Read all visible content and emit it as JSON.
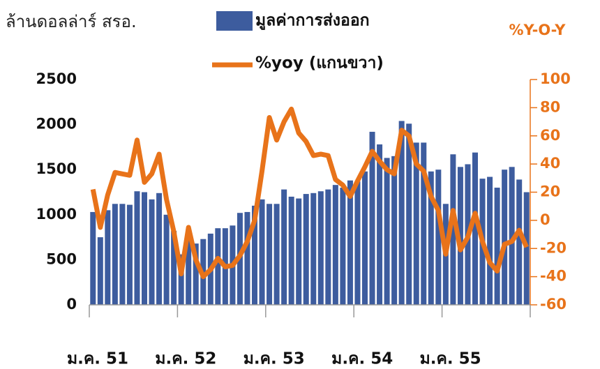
{
  "chart_data": {
    "type": "bar_line",
    "y_label": "ล้านดอลล่าร์ สรอ.",
    "y2_label": "%Y-O-Y",
    "categories": [
      "ม.ค. 51",
      null,
      null,
      null,
      null,
      null,
      null,
      null,
      null,
      null,
      null,
      null,
      "ม.ค. 52",
      null,
      null,
      null,
      null,
      null,
      null,
      null,
      null,
      null,
      null,
      null,
      "ม.ค. 53",
      null,
      null,
      null,
      null,
      null,
      null,
      null,
      null,
      null,
      null,
      null,
      "ม.ค. 54",
      null,
      null,
      null,
      null,
      null,
      null,
      null,
      null,
      null,
      null,
      null,
      "ม.ค. 55",
      null,
      null,
      null,
      null,
      null,
      null,
      null,
      null,
      null,
      null,
      null
    ],
    "series": [
      {
        "name": "มูลค่าการส่งออก",
        "type": "bar",
        "color": "#3d5c9e",
        "values": [
          1030,
          750,
          1050,
          1120,
          1120,
          1110,
          1260,
          1250,
          1170,
          1240,
          1000,
          820,
          560,
          760,
          680,
          730,
          790,
          850,
          850,
          880,
          1020,
          1030,
          1100,
          1170,
          1120,
          1120,
          1280,
          1200,
          1180,
          1230,
          1240,
          1260,
          1280,
          1330,
          1300,
          1380,
          1370,
          1480,
          1920,
          1780,
          1630,
          1650,
          2040,
          2010,
          1800,
          1800,
          1480,
          1500,
          1120,
          1670,
          1530,
          1560,
          1690,
          1400,
          1420,
          1300,
          1500,
          1530,
          1390,
          1250
        ]
      },
      {
        "name": "%yoy (แกนขวา)",
        "type": "line",
        "axis": "y2",
        "color": "#e8731a",
        "values": [
          22,
          -5,
          18,
          34,
          33,
          32,
          57,
          27,
          33,
          47,
          15,
          -8,
          -38,
          -5,
          -28,
          -40,
          -35,
          -27,
          -33,
          -32,
          -25,
          -15,
          0,
          35,
          73,
          57,
          70,
          79,
          62,
          56,
          46,
          47,
          46,
          29,
          25,
          17,
          28,
          38,
          49,
          42,
          36,
          33,
          64,
          60,
          40,
          35,
          17,
          7,
          -24,
          7,
          -21,
          -12,
          5,
          -15,
          -30,
          -36,
          -17,
          -15,
          -7,
          -19
        ]
      }
    ],
    "ylim": [
      0,
      2500
    ],
    "yticks": [
      0,
      500,
      1000,
      1500,
      2000,
      2500
    ],
    "y2lim": [
      -60,
      100
    ],
    "y2ticks": [
      -60,
      -40,
      -20,
      0,
      20,
      40,
      60,
      80,
      100
    ]
  }
}
